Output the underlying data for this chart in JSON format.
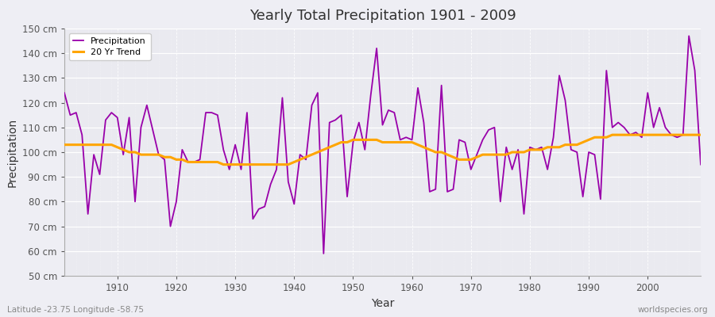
{
  "title": "Yearly Total Precipitation 1901 - 2009",
  "xlabel": "Year",
  "ylabel": "Precipitation",
  "subtitle": "Latitude -23.75 Longitude -58.75",
  "watermark": "worldspecies.org",
  "legend_labels": [
    "Precipitation",
    "20 Yr Trend"
  ],
  "precip_color": "#9900AA",
  "trend_color": "#FFA500",
  "bg_color": "#EEEEF4",
  "plot_bg": "#EAEAF0",
  "ylim": [
    50,
    150
  ],
  "yticks": [
    50,
    60,
    70,
    80,
    90,
    100,
    110,
    120,
    130,
    140,
    150
  ],
  "years": [
    1901,
    1902,
    1903,
    1904,
    1905,
    1906,
    1907,
    1908,
    1909,
    1910,
    1911,
    1912,
    1913,
    1914,
    1915,
    1916,
    1917,
    1918,
    1919,
    1920,
    1921,
    1922,
    1923,
    1924,
    1925,
    1926,
    1927,
    1928,
    1929,
    1930,
    1931,
    1932,
    1933,
    1934,
    1935,
    1936,
    1937,
    1938,
    1939,
    1940,
    1941,
    1942,
    1943,
    1944,
    1945,
    1946,
    1947,
    1948,
    1949,
    1950,
    1951,
    1952,
    1953,
    1954,
    1955,
    1956,
    1957,
    1958,
    1959,
    1960,
    1961,
    1962,
    1963,
    1964,
    1965,
    1966,
    1967,
    1968,
    1969,
    1970,
    1971,
    1972,
    1973,
    1974,
    1975,
    1976,
    1977,
    1978,
    1979,
    1980,
    1981,
    1982,
    1983,
    1984,
    1985,
    1986,
    1987,
    1988,
    1989,
    1990,
    1991,
    1992,
    1993,
    1994,
    1995,
    1996,
    1997,
    1998,
    1999,
    2000,
    2001,
    2002,
    2003,
    2004,
    2005,
    2006,
    2007,
    2008,
    2009
  ],
  "precip": [
    124,
    115,
    116,
    107,
    75,
    99,
    91,
    113,
    116,
    114,
    99,
    114,
    80,
    110,
    119,
    109,
    99,
    97,
    70,
    80,
    101,
    96,
    96,
    97,
    116,
    116,
    115,
    101,
    93,
    103,
    93,
    116,
    73,
    77,
    78,
    87,
    93,
    122,
    88,
    79,
    99,
    97,
    119,
    124,
    59,
    112,
    113,
    115,
    82,
    104,
    112,
    101,
    123,
    142,
    111,
    117,
    116,
    105,
    106,
    105,
    126,
    112,
    84,
    85,
    127,
    84,
    85,
    105,
    104,
    93,
    99,
    105,
    109,
    110,
    80,
    102,
    93,
    101,
    75,
    102,
    101,
    102,
    93,
    106,
    131,
    121,
    101,
    100,
    82,
    100,
    99,
    81,
    133,
    110,
    112,
    110,
    107,
    108,
    106,
    124,
    110,
    118,
    110,
    107,
    106,
    107,
    147,
    133,
    95
  ],
  "trend": [
    103,
    103,
    103,
    103,
    103,
    103,
    103,
    103,
    103,
    102,
    101,
    100,
    100,
    99,
    99,
    99,
    99,
    98,
    98,
    97,
    97,
    96,
    96,
    96,
    96,
    96,
    96,
    95,
    95,
    95,
    95,
    95,
    95,
    95,
    95,
    95,
    95,
    95,
    95,
    96,
    97,
    98,
    99,
    100,
    101,
    102,
    103,
    104,
    104,
    105,
    105,
    105,
    105,
    105,
    104,
    104,
    104,
    104,
    104,
    104,
    103,
    102,
    101,
    100,
    100,
    99,
    98,
    97,
    97,
    97,
    98,
    99,
    99,
    99,
    99,
    99,
    100,
    100,
    100,
    101,
    101,
    101,
    102,
    102,
    102,
    103,
    103,
    103,
    104,
    105,
    106,
    106,
    106,
    107,
    107,
    107,
    107,
    107,
    107,
    107,
    107,
    107,
    107,
    107,
    107,
    107,
    107,
    107,
    107
  ]
}
